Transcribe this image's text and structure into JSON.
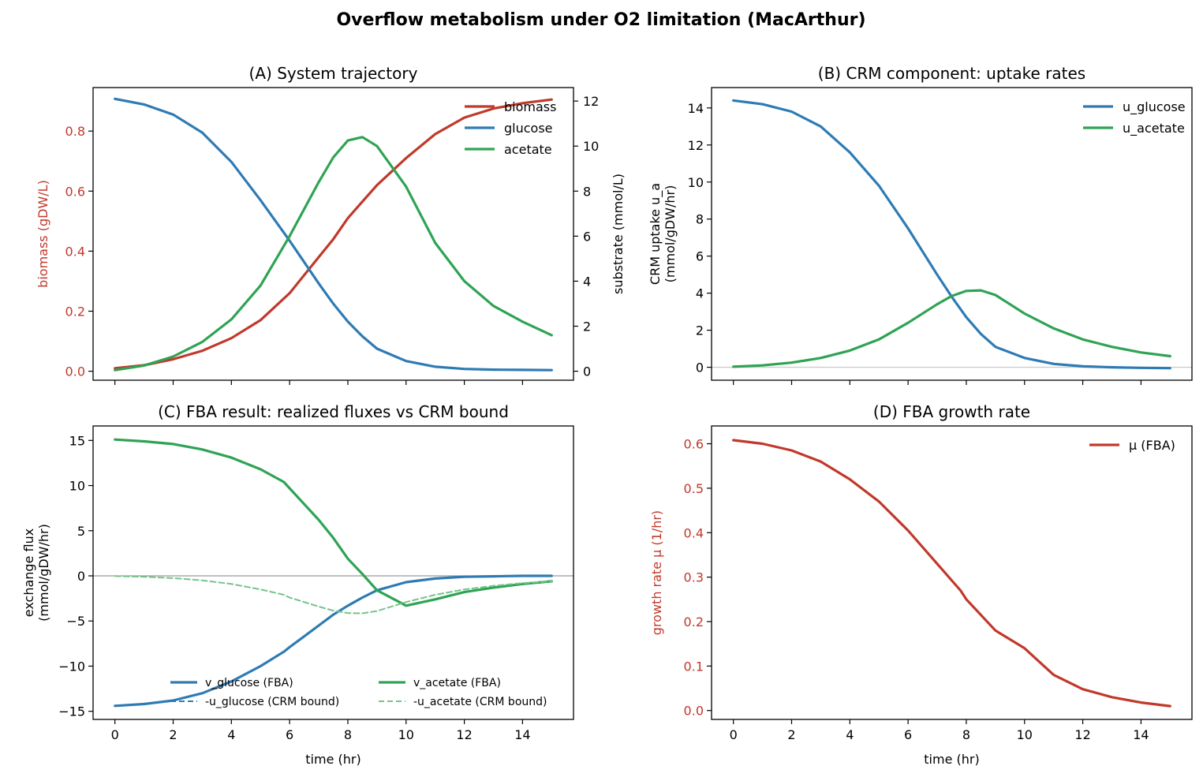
{
  "figure": {
    "suptitle": "Overflow metabolism under O2 limitation (MacArthur)"
  },
  "colors": {
    "red": "#c0392b",
    "blue": "#2e7bb4",
    "green": "#2fa354",
    "green_light": "#75c48b",
    "zero_gray": "#999999",
    "zero_gray_light": "#cccccc"
  },
  "chart_data": [
    {
      "id": "A",
      "type": "line",
      "title": "(A) System trajectory",
      "xlabel": "",
      "ylabel": "biomass (gDW/L)",
      "ylabel_right": "substrate (mmol/L)",
      "xlim": [
        -0.75,
        15.75
      ],
      "ylim": [
        -0.03,
        0.945
      ],
      "ylim_right": [
        -0.4,
        12.6
      ],
      "xticks": [
        0,
        2,
        4,
        6,
        8,
        10,
        12,
        14
      ],
      "yticks": [
        0.0,
        0.2,
        0.4,
        0.6,
        0.8
      ],
      "ytick_labels": [
        "0.0",
        "0.2",
        "0.4",
        "0.6",
        "0.8"
      ],
      "yticks_right": [
        0,
        2,
        4,
        6,
        8,
        10,
        12
      ],
      "ytick_labels_right": [
        "0",
        "2",
        "4",
        "6",
        "8",
        "10",
        "12"
      ],
      "legend_position": "top-right",
      "x": [
        0,
        1,
        2,
        3,
        4,
        5,
        6,
        7,
        7.5,
        8,
        8.5,
        9,
        10,
        11,
        12,
        13,
        14,
        15
      ],
      "series": [
        {
          "name": "biomass",
          "axis": "left",
          "color": "red",
          "values": [
            0.01,
            0.02,
            0.04,
            0.068,
            0.11,
            0.17,
            0.26,
            0.38,
            0.44,
            0.51,
            0.565,
            0.62,
            0.71,
            0.79,
            0.845,
            0.875,
            0.893,
            0.905
          ]
        },
        {
          "name": "glucose",
          "axis": "right",
          "color": "blue",
          "values": [
            12.1,
            11.85,
            11.4,
            10.6,
            9.3,
            7.6,
            5.8,
            3.9,
            3.0,
            2.2,
            1.55,
            1.0,
            0.45,
            0.2,
            0.1,
            0.07,
            0.06,
            0.05
          ]
        },
        {
          "name": "acetate",
          "axis": "right",
          "color": "green",
          "values": [
            0.05,
            0.25,
            0.65,
            1.3,
            2.3,
            3.8,
            6.0,
            8.4,
            9.5,
            10.25,
            10.4,
            10.0,
            8.2,
            5.7,
            4.0,
            2.9,
            2.2,
            1.6
          ]
        }
      ]
    },
    {
      "id": "B",
      "type": "line",
      "title": "(B) CRM component: uptake rates",
      "xlabel": "",
      "ylabel": "CRM uptake u_a\n(mmol/gDW/hr)",
      "xlim": [
        -0.75,
        15.75
      ],
      "ylim": [
        -0.7,
        15.1
      ],
      "xticks": [
        0,
        2,
        4,
        6,
        8,
        10,
        12,
        14
      ],
      "yticks": [
        0,
        2,
        4,
        6,
        8,
        10,
        12,
        14
      ],
      "ytick_labels": [
        "0",
        "2",
        "4",
        "6",
        "8",
        "10",
        "12",
        "14"
      ],
      "legend_position": "top-right",
      "x": [
        0,
        1,
        2,
        3,
        4,
        5,
        6,
        7,
        7.5,
        8,
        8.5,
        9,
        10,
        11,
        12,
        13,
        14,
        15
      ],
      "series": [
        {
          "name": "u_glucose",
          "color": "blue",
          "values": [
            14.4,
            14.2,
            13.8,
            13.0,
            11.6,
            9.8,
            7.5,
            5.0,
            3.8,
            2.7,
            1.8,
            1.1,
            0.5,
            0.18,
            0.05,
            0.0,
            -0.03,
            -0.05
          ]
        },
        {
          "name": "u_acetate",
          "color": "green",
          "values": [
            0.03,
            0.1,
            0.25,
            0.5,
            0.9,
            1.5,
            2.4,
            3.4,
            3.85,
            4.12,
            4.15,
            3.9,
            2.9,
            2.1,
            1.5,
            1.1,
            0.8,
            0.6
          ]
        }
      ]
    },
    {
      "id": "C",
      "type": "line",
      "title": "(C) FBA result: realized fluxes vs CRM bound",
      "xlabel": "time (hr)",
      "ylabel": "exchange flux\n(mmol/gDW/hr)",
      "xlim": [
        -0.75,
        15.75
      ],
      "ylim": [
        -15.9,
        16.6
      ],
      "xticks": [
        0,
        2,
        4,
        6,
        8,
        10,
        12,
        14
      ],
      "xtick_labels": [
        "0",
        "2",
        "4",
        "6",
        "8",
        "10",
        "12",
        "14"
      ],
      "yticks": [
        -15,
        -10,
        -5,
        0,
        5,
        10,
        15
      ],
      "ytick_labels": [
        "−15",
        "−10",
        "−5",
        "0",
        "5",
        "10",
        "15"
      ],
      "legend_position": "lower-center",
      "x": [
        0,
        1,
        2,
        3,
        4,
        5,
        5.8,
        6,
        7,
        7.5,
        8,
        8.5,
        9,
        10,
        11,
        12,
        13,
        14,
        15
      ],
      "series": [
        {
          "name": "v_glucose (FBA)",
          "color": "blue",
          "style": "solid",
          "values": [
            -14.4,
            -14.2,
            -13.8,
            -13.0,
            -11.7,
            -10.0,
            -8.4,
            -7.9,
            -5.5,
            -4.3,
            -3.3,
            -2.4,
            -1.6,
            -0.7,
            -0.3,
            -0.1,
            -0.05,
            0.0,
            0.0
          ]
        },
        {
          "name": "-u_glucose (CRM bound)",
          "color": "blue",
          "style": "dashed",
          "hidden_behind": "v_glucose (FBA)",
          "values": [
            -14.4,
            -14.2,
            -13.8,
            -13.0,
            -11.7,
            -10.0,
            -8.4,
            -7.9,
            -5.5,
            -4.3,
            -3.3,
            -2.4,
            -1.6,
            -0.7,
            -0.3,
            -0.1,
            -0.05,
            0.0,
            0.0
          ]
        },
        {
          "name": "v_acetate (FBA)",
          "color": "green",
          "style": "solid",
          "values": [
            15.1,
            14.9,
            14.6,
            14.0,
            13.1,
            11.8,
            10.4,
            9.7,
            6.2,
            4.2,
            1.9,
            0.2,
            -1.6,
            -3.3,
            -2.6,
            -1.8,
            -1.3,
            -0.9,
            -0.6
          ]
        },
        {
          "name": "-u_acetate (CRM bound)",
          "color": "green_light",
          "style": "dashed",
          "values": [
            -0.03,
            -0.1,
            -0.25,
            -0.5,
            -0.9,
            -1.5,
            -2.1,
            -2.4,
            -3.4,
            -3.85,
            -4.12,
            -4.15,
            -3.9,
            -2.9,
            -2.1,
            -1.5,
            -1.1,
            -0.8,
            -0.6
          ]
        }
      ]
    },
    {
      "id": "D",
      "type": "line",
      "title": "(D) FBA growth rate",
      "xlabel": "time (hr)",
      "ylabel": "growth rate μ (1/hr)",
      "xlim": [
        -0.75,
        15.75
      ],
      "ylim": [
        -0.02,
        0.64
      ],
      "xticks": [
        0,
        2,
        4,
        6,
        8,
        10,
        12,
        14
      ],
      "xtick_labels": [
        "0",
        "2",
        "4",
        "6",
        "8",
        "10",
        "12",
        "14"
      ],
      "yticks": [
        0.0,
        0.1,
        0.2,
        0.3,
        0.4,
        0.5,
        0.6
      ],
      "ytick_labels": [
        "0.0",
        "0.1",
        "0.2",
        "0.3",
        "0.4",
        "0.5",
        "0.6"
      ],
      "legend_position": "top-right",
      "x": [
        0,
        1,
        2,
        3,
        4,
        5,
        6,
        7,
        7.8,
        8,
        9,
        10,
        10.5,
        11,
        12,
        13,
        14,
        15
      ],
      "series": [
        {
          "name": "μ (FBA)",
          "color": "red",
          "values": [
            0.608,
            0.6,
            0.585,
            0.56,
            0.52,
            0.47,
            0.405,
            0.33,
            0.27,
            0.25,
            0.18,
            0.14,
            0.11,
            0.08,
            0.048,
            0.03,
            0.018,
            0.01
          ]
        }
      ]
    }
  ]
}
